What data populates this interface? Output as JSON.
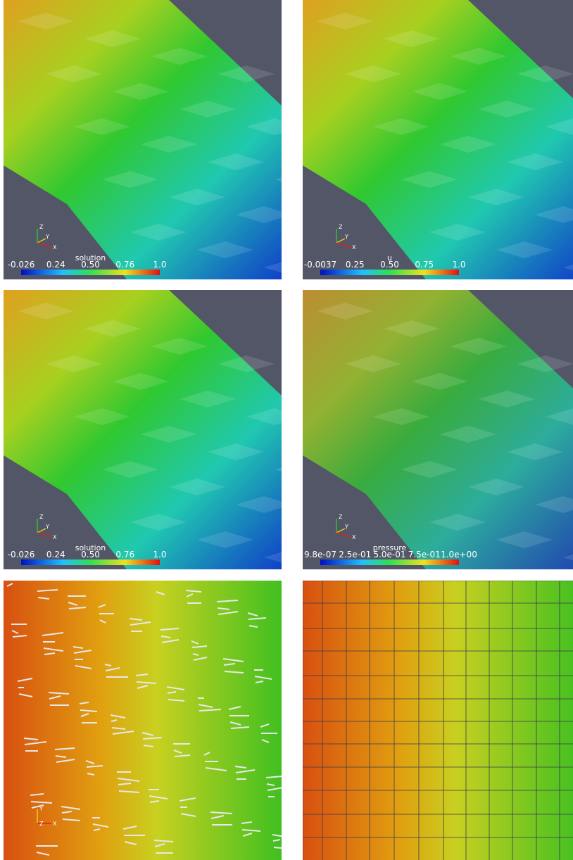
{
  "panels": [
    {
      "colorbar": {
        "title": "solution",
        "labels": [
          "-0.026",
          "0.24",
          "0.50",
          "0.76",
          "1.0"
        ]
      },
      "axes": [
        "Z",
        "Y",
        "X"
      ]
    },
    {
      "colorbar": {
        "title": "u",
        "labels": [
          "-0.0037",
          "0.25",
          "0.50",
          "0.75",
          "1.0"
        ]
      },
      "axes": [
        "Z",
        "Y",
        "X"
      ]
    },
    {
      "colorbar": {
        "title": "solution",
        "labels": [
          "-0.026",
          "0.24",
          "0.50",
          "0.76",
          "1.0"
        ]
      },
      "axes": [
        "Z",
        "Y",
        "X"
      ]
    },
    {
      "colorbar": {
        "title": "pressure",
        "labels": [
          "9.8e-07",
          "2.5e-01",
          "5.0e-01",
          "7.5e-01",
          "1.0e+00"
        ]
      },
      "axes": [
        "Z",
        "Y",
        "X"
      ]
    },
    {
      "axes": [
        "Y",
        "Z",
        "X"
      ]
    }
  ]
}
